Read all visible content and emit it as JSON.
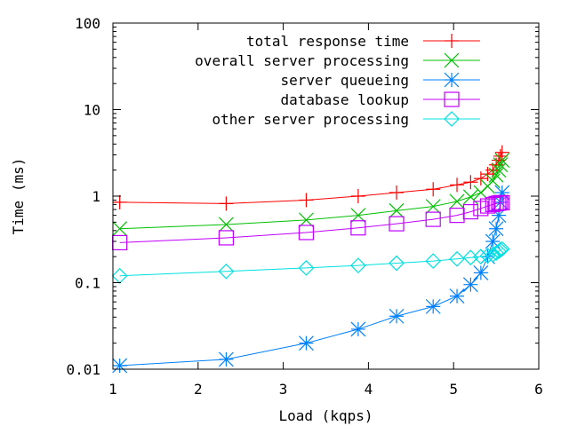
{
  "chart_data": {
    "type": "line",
    "title": "",
    "xlabel": "Load (kqps)",
    "ylabel": "Time (ms)",
    "xlim": [
      1,
      6
    ],
    "ylim": [
      0.01,
      100
    ],
    "yscale": "log",
    "x_ticks": [
      1,
      2,
      3,
      4,
      5,
      6
    ],
    "x_tick_labels": [
      "1",
      "2",
      "3",
      "4",
      "5",
      "6"
    ],
    "y_ticks": [
      0.01,
      0.1,
      1,
      10,
      100
    ],
    "y_tick_labels": [
      "0.01",
      "0.1",
      "1",
      "10",
      "100"
    ],
    "legend_position": "top-right",
    "series": [
      {
        "name": "total response time",
        "color": "#ff0000",
        "marker": "plus",
        "x": [
          1.08,
          2.33,
          3.27,
          3.88,
          4.33,
          4.76,
          5.04,
          5.2,
          5.32,
          5.4,
          5.46,
          5.5,
          5.53,
          5.55,
          5.57
        ],
        "y": [
          0.85,
          0.82,
          0.9,
          1.0,
          1.1,
          1.2,
          1.35,
          1.45,
          1.6,
          1.8,
          2.0,
          2.3,
          2.6,
          2.9,
          3.2
        ]
      },
      {
        "name": "overall server processing",
        "color": "#00c000",
        "marker": "x",
        "x": [
          1.08,
          2.33,
          3.27,
          3.88,
          4.33,
          4.76,
          5.04,
          5.2,
          5.32,
          5.4,
          5.46,
          5.5,
          5.53,
          5.55,
          5.57
        ],
        "y": [
          0.42,
          0.47,
          0.53,
          0.6,
          0.68,
          0.76,
          0.87,
          0.98,
          1.1,
          1.3,
          1.5,
          1.75,
          2.0,
          2.3,
          2.6
        ]
      },
      {
        "name": "server queueing",
        "color": "#0080ff",
        "marker": "star",
        "x": [
          1.08,
          2.33,
          3.27,
          3.88,
          4.33,
          4.76,
          5.04,
          5.2,
          5.32,
          5.4,
          5.46,
          5.5,
          5.53,
          5.55,
          5.57
        ],
        "y": [
          0.011,
          0.013,
          0.02,
          0.029,
          0.041,
          0.053,
          0.07,
          0.095,
          0.13,
          0.2,
          0.3,
          0.42,
          0.6,
          0.85,
          1.1
        ]
      },
      {
        "name": "database lookup",
        "color": "#c000ff",
        "marker": "square",
        "x": [
          1.08,
          2.33,
          3.27,
          3.88,
          4.33,
          4.76,
          5.04,
          5.2,
          5.32,
          5.4,
          5.46,
          5.5,
          5.53,
          5.55,
          5.57
        ],
        "y": [
          0.29,
          0.33,
          0.38,
          0.43,
          0.48,
          0.54,
          0.6,
          0.66,
          0.72,
          0.77,
          0.8,
          0.82,
          0.83,
          0.84,
          0.84
        ]
      },
      {
        "name": "other server processing",
        "color": "#00e0e0",
        "marker": "diamond",
        "x": [
          1.08,
          2.33,
          3.27,
          3.88,
          4.33,
          4.76,
          5.04,
          5.2,
          5.32,
          5.4,
          5.46,
          5.5,
          5.53,
          5.55,
          5.57
        ],
        "y": [
          0.12,
          0.135,
          0.148,
          0.158,
          0.168,
          0.178,
          0.188,
          0.195,
          0.2,
          0.205,
          0.21,
          0.22,
          0.23,
          0.24,
          0.245
        ]
      }
    ]
  }
}
